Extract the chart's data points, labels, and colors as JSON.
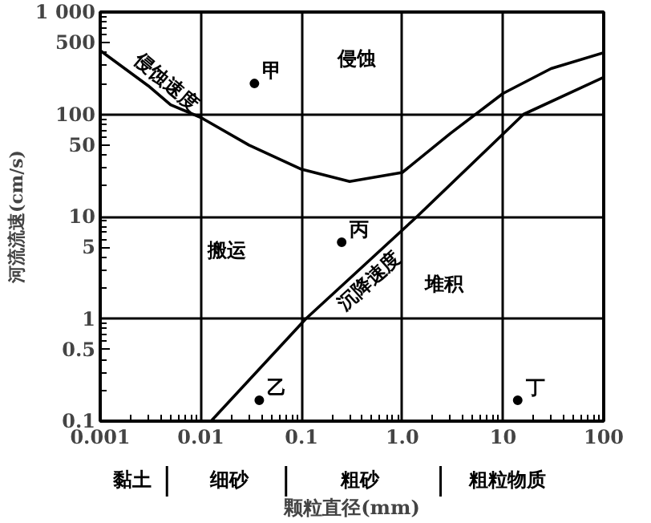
{
  "chart_data": {
    "type": "line",
    "xlabel": "颗粒直径(mm)",
    "ylabel": "河流流速(cm/s)",
    "log": "xy",
    "xlim": [
      0.001,
      100
    ],
    "ylim": [
      0.1,
      1000
    ],
    "xticks": [
      0.001,
      0.01,
      0.1,
      {
        "value": 1,
        "label": "1.0"
      },
      10,
      100
    ],
    "yticks": [
      0.1,
      0.5,
      1,
      5,
      10,
      50,
      100,
      500,
      {
        "value": 1000,
        "label": "1 000"
      }
    ],
    "grid": true,
    "series": [
      {
        "name": "侵蚀速度",
        "color": "#000000",
        "x": [
          0.001,
          0.003,
          0.005,
          0.01,
          0.03,
          0.1,
          0.3,
          1,
          3,
          10,
          30,
          100
        ],
        "values": [
          420,
          190,
          124,
          93,
          50,
          29,
          22,
          27,
          65,
          160,
          280,
          400
        ]
      },
      {
        "name": "沉降速度",
        "color": "#000000",
        "x": [
          0.0126,
          0.11,
          1.4,
          16,
          100
        ],
        "values": [
          0.1,
          1,
          10,
          100,
          230
        ]
      },
      {
        "name": "甲",
        "type": "scatter",
        "color": "#000000",
        "x": [
          0.034
        ],
        "values": [
          200
        ]
      },
      {
        "name": "乙",
        "type": "scatter",
        "color": "#000000",
        "x": [
          0.038
        ],
        "values": [
          0.16
        ]
      },
      {
        "name": "丙",
        "type": "scatter",
        "color": "#000000",
        "x": [
          0.25
        ],
        "values": [
          5.6
        ]
      },
      {
        "name": "丁",
        "type": "scatter",
        "color": "#000000",
        "x": [
          14
        ],
        "values": [
          0.16
        ]
      }
    ],
    "annotations": [
      "侵蚀",
      "搬运",
      "堆积",
      "黏土",
      "细砂",
      "粗砂",
      "粗粒物质"
    ]
  }
}
